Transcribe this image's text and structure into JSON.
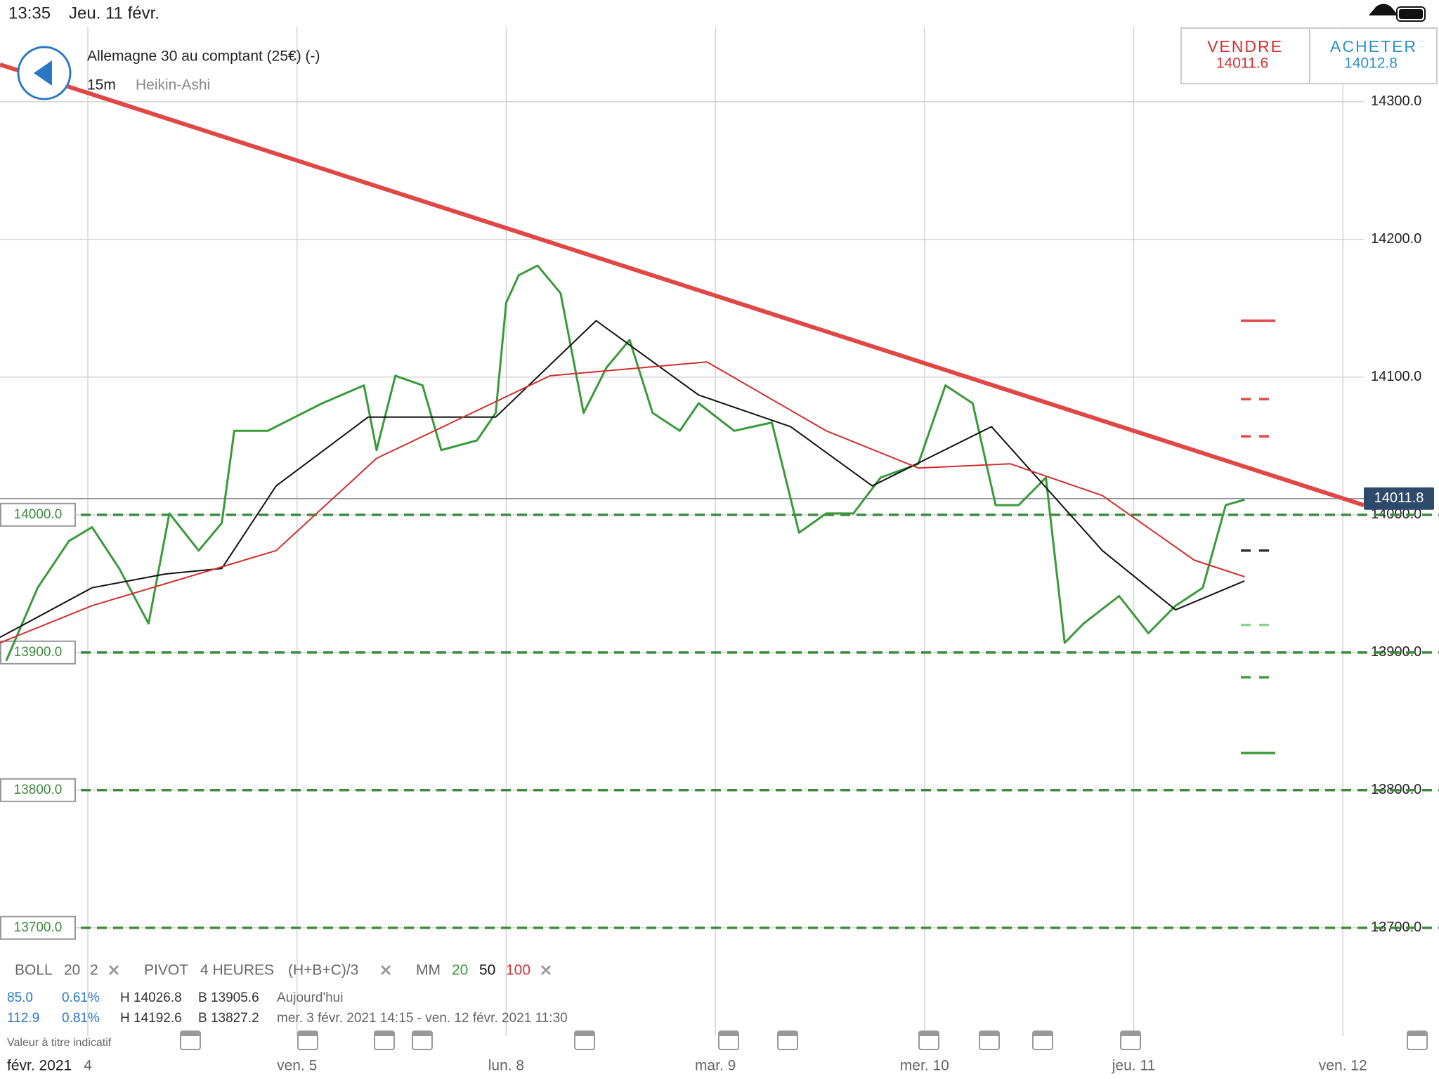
{
  "status_bar": {
    "time": "13:35",
    "date": "Jeu. 11 févr."
  },
  "header": {
    "instrument": "Allemagne 30 au comptant (25€) (-)",
    "interval": "15m",
    "chart_style": "Heikin-Ashi",
    "sell_label": "VENDRE",
    "sell_price": "14011.6",
    "buy_label": "ACHETER",
    "buy_price": "14012.8"
  },
  "chart_data": {
    "type": "line",
    "xlim": [
      -0.42,
      6.1
    ],
    "ylim": [
      13680,
      14354
    ],
    "xticks": [
      {
        "value": 0,
        "label": "4"
      },
      {
        "value": 1,
        "label": "ven. 5"
      },
      {
        "value": 2,
        "label": "lun. 8"
      },
      {
        "value": 3,
        "label": "mar. 9"
      },
      {
        "value": 4,
        "label": "mer. 10"
      },
      {
        "value": 5,
        "label": "jeu. 11"
      },
      {
        "value": 6,
        "label": "ven. 12"
      }
    ],
    "yticks": [
      {
        "value": 13700,
        "label": "13700.0"
      },
      {
        "value": 13800,
        "label": "13800.0"
      },
      {
        "value": 13900,
        "label": "13900.0"
      },
      {
        "value": 14000,
        "label": "14000.0"
      },
      {
        "value": 14100,
        "label": "14100.0"
      },
      {
        "value": 14200,
        "label": "14200.0"
      },
      {
        "value": 14300,
        "label": "14300.0"
      }
    ],
    "grid": true,
    "series": [
      {
        "color": "#3a9a3a",
        "x": [
          -0.39,
          -0.24,
          -0.09,
          0.02,
          0.15,
          0.29,
          0.39,
          0.53,
          0.64,
          0.7,
          0.86,
          0.99,
          1.12,
          1.32,
          1.38,
          1.47,
          1.6,
          1.69,
          1.86,
          1.95,
          2.0,
          2.06,
          2.15,
          2.26,
          2.37,
          2.48,
          2.59,
          2.7,
          2.83,
          2.92,
          3.09,
          3.27,
          3.4,
          3.53,
          3.66,
          3.79,
          3.97,
          4.1,
          4.23,
          4.34,
          4.45,
          4.58,
          4.67,
          4.76,
          4.93,
          5.07,
          5.2,
          5.33,
          5.44,
          5.53
        ],
        "values": [
          13894,
          13947,
          13981,
          13991,
          13961,
          13921,
          14001,
          13974,
          13994,
          14061,
          14061,
          14071,
          14081,
          14094,
          14047,
          14101,
          14094,
          14047,
          14054,
          14074,
          14154,
          14174,
          14181,
          14161,
          14074,
          14107,
          14127,
          14074,
          14061,
          14081,
          14061,
          14067,
          13987,
          14001,
          14001,
          14027,
          14037,
          14094,
          14081,
          14007,
          14007,
          14027,
          13907,
          13921,
          13941,
          13914,
          13934,
          13947,
          14007,
          14011
        ]
      },
      {
        "color": "#111111",
        "x": [
          -0.42,
          0.02,
          0.37,
          0.64,
          0.9,
          1.34,
          1.95,
          2.43,
          2.92,
          3.36,
          3.75,
          4.32,
          4.85,
          5.2,
          5.53
        ],
        "values": [
          13911,
          13947,
          13957,
          13961,
          14021,
          14071,
          14071,
          14141,
          14087,
          14064,
          14021,
          14064,
          13974,
          13931,
          13952
        ]
      },
      {
        "color": "#d03030",
        "x": [
          -0.42,
          0.02,
          0.9,
          1.38,
          2.21,
          2.96,
          3.53,
          3.97,
          4.41,
          4.85,
          5.29,
          5.53
        ],
        "values": [
          13907,
          13934,
          13974,
          14041,
          14101,
          14111,
          14061,
          14034,
          14037,
          14014,
          13967,
          13955
        ]
      }
    ],
    "trendline": {
      "color": "#e04848",
      "x": [
        -0.42,
        6.1
      ],
      "values": [
        14327,
        14007
      ]
    },
    "levels": [
      {
        "value": 14000,
        "label": "14000.0"
      },
      {
        "value": 13900,
        "label": "13900.0"
      },
      {
        "value": 13800,
        "label": "13800.0"
      },
      {
        "value": 13700,
        "label": "13700.0"
      }
    ],
    "level_color": "#3d8b3d",
    "pivot_markers": [
      {
        "value": 14141,
        "color": "#e04848",
        "dashed": false
      },
      {
        "value": 14084,
        "color": "#e04848",
        "dashed": true
      },
      {
        "value": 14057,
        "color": "#e04848",
        "dashed": true
      },
      {
        "value": 13974,
        "color": "#333333",
        "dashed": true
      },
      {
        "value": 13920,
        "color": "#8fd08f",
        "dashed": true
      },
      {
        "value": 13882,
        "color": "#3d9b3d",
        "dashed": true
      },
      {
        "value": 13827,
        "color": "#3d9b3d",
        "dashed": false
      }
    ],
    "last_price": {
      "value": 14011.8,
      "label": "14011.8"
    }
  },
  "indicators": {
    "boll": {
      "name": "BOLL",
      "period": "20",
      "deviation": "2"
    },
    "pivot": {
      "name": "PIVOT",
      "period": "4 HEURES",
      "formula": "(H+B+C)/3"
    },
    "mm": {
      "name": "MM",
      "p1": "20",
      "p2": "50",
      "p3": "100"
    }
  },
  "stats": {
    "rows": [
      [
        "85.0",
        "0.61%",
        "H 14026.8",
        "B 13905.6",
        "Aujourd'hui"
      ],
      [
        "112.9",
        "0.81%",
        "H 14192.6",
        "B 13827.2",
        "mer. 3 févr. 2021 14:15 - ven. 12 févr. 2021 11:30"
      ]
    ]
  },
  "footer": {
    "disclaimer": "Valeur à titre indicatif",
    "month": "févr. 2021"
  }
}
